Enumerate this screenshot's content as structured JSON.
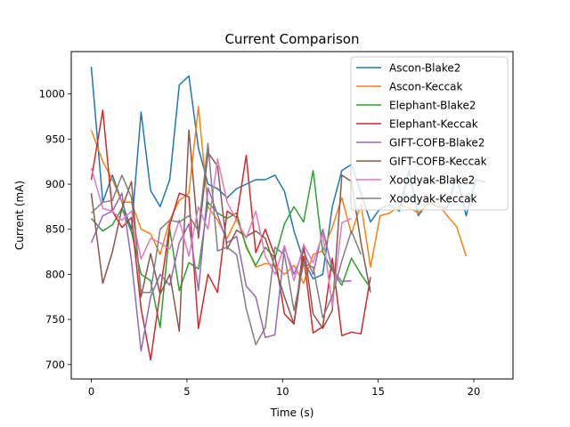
{
  "chart_data": {
    "type": "line",
    "title": "Current Comparison",
    "xlabel": "Time (s)",
    "ylabel": "Current (mA)",
    "xlim": [
      -1.05,
      22.05
    ],
    "ylim": [
      684,
      1047
    ],
    "xticks": [
      0,
      5,
      10,
      15,
      20
    ],
    "yticks": [
      700,
      750,
      800,
      850,
      900,
      950,
      1000
    ],
    "legend_position": "top-right",
    "series": [
      {
        "name": "Ascon-Blake2",
        "color": "#1f77b4",
        "x": [
          0.0,
          0.6,
          1.1,
          1.6,
          2.1,
          2.6,
          3.1,
          3.6,
          4.1,
          4.6,
          5.1,
          5.6,
          6.1,
          6.6,
          7.1,
          7.6,
          8.1,
          8.6,
          9.1,
          9.6,
          10.1,
          10.6,
          11.1,
          11.6,
          12.1,
          12.6,
          13.1,
          13.6,
          14.1,
          14.6,
          15.1,
          15.6,
          16.1,
          16.6,
          17.1,
          17.6,
          18.1,
          18.6,
          19.1,
          19.6,
          20.1,
          20.6
        ],
        "y": [
          1030,
          880,
          910,
          880,
          850,
          980,
          893,
          875,
          905,
          1010,
          1020,
          940,
          900,
          895,
          885,
          895,
          900,
          905,
          905,
          910,
          892,
          848,
          815,
          795,
          800,
          875,
          915,
          922,
          890,
          858,
          873,
          877,
          870,
          915,
          865,
          880,
          875,
          873,
          910,
          865,
          905,
          902
        ]
      },
      {
        "name": "Ascon-Keccak",
        "color": "#ff7f0e",
        "x": [
          0.0,
          0.6,
          1.1,
          1.6,
          2.1,
          2.6,
          3.1,
          3.6,
          4.1,
          4.6,
          5.1,
          5.6,
          6.1,
          6.6,
          7.1,
          7.6,
          8.1,
          8.6,
          9.1,
          9.6,
          10.1,
          10.6,
          11.1,
          11.6,
          12.1,
          12.6,
          13.1,
          13.6,
          14.1,
          14.6,
          15.1,
          15.6,
          16.1,
          16.6,
          17.1,
          17.6,
          18.1,
          18.6,
          19.1,
          19.6
        ],
        "y": [
          960,
          925,
          905,
          880,
          880,
          850,
          845,
          822,
          860,
          882,
          890,
          986,
          875,
          860,
          840,
          862,
          832,
          808,
          812,
          810,
          800,
          810,
          790,
          822,
          826,
          852,
          885,
          845,
          878,
          808,
          865,
          868,
          876,
          874,
          868,
          878,
          880,
          865,
          853,
          820
        ]
      },
      {
        "name": "Elephant-Blake2",
        "color": "#2ca02c",
        "x": [
          0.0,
          0.6,
          1.1,
          1.6,
          2.1,
          2.6,
          3.1,
          3.6,
          4.1,
          4.6,
          5.1,
          5.6,
          6.1,
          6.6,
          7.1,
          7.6,
          8.1,
          8.6,
          9.1,
          9.6,
          10.1,
          10.6,
          11.1,
          11.6,
          12.1,
          12.6,
          13.1,
          13.6,
          14.1,
          14.6
        ],
        "y": [
          862,
          848,
          855,
          873,
          847,
          800,
          793,
          741,
          850,
          782,
          813,
          806,
          880,
          868,
          862,
          868,
          830,
          810,
          830,
          818,
          856,
          875,
          858,
          915,
          825,
          804,
          788,
          818,
          800,
          785
        ]
      },
      {
        "name": "Elephant-Keccak",
        "color": "#d62728",
        "x": [
          0.0,
          0.6,
          1.1,
          1.6,
          2.1,
          2.6,
          3.1,
          3.6,
          4.1,
          4.6,
          5.1,
          5.6,
          6.1,
          6.6,
          7.1,
          7.6,
          8.1,
          8.6,
          9.1,
          9.6,
          10.1,
          10.6,
          11.1,
          11.6,
          12.1,
          12.6,
          13.1,
          13.6,
          14.1,
          14.6
        ],
        "y": [
          905,
          982,
          870,
          852,
          863,
          762,
          705,
          780,
          855,
          890,
          886,
          740,
          800,
          780,
          870,
          863,
          932,
          824,
          850,
          820,
          756,
          745,
          820,
          735,
          742,
          818,
          732,
          736,
          734,
          797
        ]
      },
      {
        "name": "GIFT-COFB-Blake2",
        "color": "#9467bd",
        "x": [
          0.0,
          0.6,
          1.1,
          1.6,
          2.1,
          2.6,
          3.1,
          3.6,
          4.1,
          4.6,
          5.1,
          5.6,
          6.1,
          6.6,
          7.1,
          7.6,
          8.1,
          8.6,
          9.1,
          9.6,
          10.1,
          10.6,
          11.1,
          11.6,
          12.1,
          12.6,
          13.1,
          13.6
        ],
        "y": [
          835,
          865,
          870,
          890,
          815,
          715,
          775,
          800,
          788,
          835,
          856,
          782,
          896,
          866,
          835,
          842,
          787,
          775,
          730,
          733,
          830,
          800,
          826,
          800,
          850,
          806,
          792,
          793
        ]
      },
      {
        "name": "GIFT-COFB-Keccak",
        "color": "#8c564b",
        "x": [
          0.0,
          0.6,
          1.1,
          1.6,
          2.1,
          2.6,
          3.1,
          3.6,
          4.1,
          4.6,
          5.1,
          5.6,
          6.1,
          6.6,
          7.1,
          7.6,
          8.1,
          8.6,
          9.1,
          9.6,
          10.1,
          10.6,
          11.1,
          11.6,
          12.1,
          12.6,
          13.1,
          13.6,
          14.1,
          14.6
        ],
        "y": [
          890,
          790,
          825,
          873,
          903,
          775,
          823,
          778,
          800,
          737,
          960,
          840,
          935,
          920,
          828,
          849,
          842,
          848,
          840,
          808,
          775,
          745,
          833,
          756,
          740,
          760,
          910,
          903,
          835,
          780
        ]
      },
      {
        "name": "Xoodyak-Blake2",
        "color": "#e377c2",
        "x": [
          0.0,
          0.6,
          1.1,
          1.6,
          2.1,
          2.6,
          3.1,
          3.6,
          4.1,
          4.6,
          5.1,
          5.6,
          6.1,
          6.6,
          7.1,
          7.6,
          8.1,
          8.6,
          9.1,
          9.6,
          10.1,
          10.6,
          11.1,
          11.6,
          12.1,
          12.6,
          13.1,
          13.6
        ],
        "y": [
          918,
          873,
          870,
          860,
          870,
          817,
          840,
          835,
          828,
          860,
          820,
          875,
          850,
          928,
          880,
          860,
          840,
          870,
          820,
          800,
          832,
          793,
          833,
          813,
          845,
          765,
          857,
          862
        ]
      },
      {
        "name": "Xoodyak-Keccak",
        "color": "#7f7f7f",
        "x": [
          0.0,
          0.6,
          1.1,
          1.6,
          2.1,
          2.6,
          3.1,
          3.6,
          4.1,
          4.6,
          5.1,
          5.6,
          6.1,
          6.6,
          7.1,
          7.6,
          8.1,
          8.6,
          9.1,
          9.6,
          10.1,
          10.6,
          11.1,
          11.6,
          12.1,
          12.6,
          13.1,
          13.6,
          14.1
        ],
        "y": [
          868,
          880,
          882,
          910,
          885,
          780,
          780,
          850,
          860,
          858,
          865,
          848,
          945,
          826,
          830,
          822,
          762,
          722,
          741,
          830,
          822,
          760,
          812,
          808,
          752,
          776,
          815,
          848,
          822
        ]
      }
    ]
  }
}
